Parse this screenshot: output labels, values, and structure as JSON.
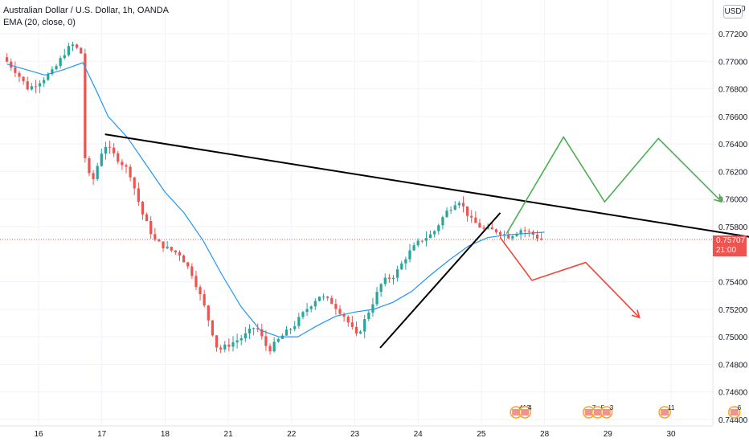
{
  "legend": {
    "title": "Australian Dollar / U.S. Dollar, 1h, OANDA",
    "indicator": "EMA (20, close, 0)"
  },
  "currency": "USD",
  "top_right_glyph": "0",
  "last_price": {
    "value": "0.75707",
    "countdown": "21:00",
    "color": "#ef5350"
  },
  "colors": {
    "up": "#26a69a",
    "down": "#ef5350",
    "ema": "#2196f3",
    "trendline": "#000000",
    "bull_path": "#4caf50",
    "bear_path": "#f44336"
  },
  "chart_data": {
    "type": "candlestick",
    "title": "Australian Dollar / U.S. Dollar, 1h, OANDA",
    "x_ticks": [
      "16",
      "17",
      "18",
      "21",
      "22",
      "23",
      "24",
      "25",
      "28",
      "29",
      "30"
    ],
    "y_ticks": [
      "0.77200",
      "0.77000",
      "0.76800",
      "0.76600",
      "0.76400",
      "0.76200",
      "0.76000",
      "0.75800",
      "0.75400",
      "0.75200",
      "0.75000",
      "0.74800",
      "0.74600",
      "0.74400"
    ],
    "ylim": [
      0.744,
      0.773
    ],
    "price_series": [
      [
        15.5,
        0.7703
      ],
      [
        15.7,
        0.7693
      ],
      [
        15.9,
        0.768
      ],
      [
        16.1,
        0.7686
      ],
      [
        16.3,
        0.7693
      ],
      [
        16.5,
        0.7708
      ],
      [
        16.6,
        0.7712
      ],
      [
        16.7,
        0.7708
      ],
      [
        16.75,
        0.7705
      ],
      [
        16.8,
        0.763
      ],
      [
        16.9,
        0.761
      ],
      [
        17.1,
        0.764
      ],
      [
        17.3,
        0.763
      ],
      [
        17.5,
        0.762
      ],
      [
        17.7,
        0.759
      ],
      [
        17.9,
        0.757
      ],
      [
        18.1,
        0.7564
      ],
      [
        18.3,
        0.756
      ],
      [
        18.5,
        0.7545
      ],
      [
        18.7,
        0.752
      ],
      [
        18.9,
        0.749
      ],
      [
        19.1,
        0.7495
      ],
      [
        19.3,
        0.75
      ],
      [
        19.5,
        0.7508
      ],
      [
        19.7,
        0.749
      ],
      [
        19.9,
        0.75
      ],
      [
        20.1,
        0.7508
      ],
      [
        20.3,
        0.752
      ],
      [
        20.5,
        0.753
      ],
      [
        20.7,
        0.7525
      ],
      [
        20.9,
        0.7515
      ],
      [
        21.1,
        0.75
      ],
      [
        21.3,
        0.752
      ],
      [
        21.5,
        0.754
      ],
      [
        21.7,
        0.7545
      ],
      [
        21.9,
        0.756
      ],
      [
        22.1,
        0.757
      ],
      [
        22.3,
        0.7575
      ],
      [
        22.5,
        0.759
      ],
      [
        22.7,
        0.76
      ],
      [
        22.9,
        0.7585
      ],
      [
        23.1,
        0.7578
      ],
      [
        23.3,
        0.7577
      ],
      [
        23.5,
        0.7573
      ],
      [
        23.7,
        0.7578
      ],
      [
        23.9,
        0.7574
      ],
      [
        24.0,
        0.75707
      ]
    ],
    "ema_series": [
      [
        15.5,
        0.7698
      ],
      [
        15.8,
        0.7694
      ],
      [
        16.1,
        0.769
      ],
      [
        16.4,
        0.7694
      ],
      [
        16.7,
        0.7699
      ],
      [
        16.9,
        0.768
      ],
      [
        17.1,
        0.766
      ],
      [
        17.4,
        0.7645
      ],
      [
        17.7,
        0.7625
      ],
      [
        18.0,
        0.7605
      ],
      [
        18.3,
        0.759
      ],
      [
        18.6,
        0.757
      ],
      [
        18.9,
        0.7545
      ],
      [
        19.2,
        0.7522
      ],
      [
        19.5,
        0.7505
      ],
      [
        19.8,
        0.75
      ],
      [
        20.1,
        0.75
      ],
      [
        20.4,
        0.7508
      ],
      [
        20.7,
        0.7515
      ],
      [
        21.0,
        0.7518
      ],
      [
        21.3,
        0.752
      ],
      [
        21.6,
        0.7525
      ],
      [
        21.9,
        0.7533
      ],
      [
        22.2,
        0.7545
      ],
      [
        22.5,
        0.7556
      ],
      [
        22.8,
        0.7566
      ],
      [
        23.1,
        0.7572
      ],
      [
        23.4,
        0.7574
      ],
      [
        23.7,
        0.7575
      ],
      [
        24.0,
        0.7576
      ]
    ],
    "trendlines": [
      {
        "name": "descending-resistance",
        "from": [
          17.05,
          0.7647
        ],
        "to": [
          30.6,
          0.7548
        ]
      },
      {
        "name": "ascending-support",
        "from": [
          21.4,
          0.7492
        ],
        "to": [
          23.3,
          0.759
        ]
      }
    ],
    "projections": [
      {
        "name": "bullish-path",
        "points": [
          [
            23.4,
            0.7575
          ],
          [
            24.3,
            0.7645
          ],
          [
            24.95,
            0.7598
          ],
          [
            25.8,
            0.7644
          ],
          [
            26.8,
            0.7598
          ]
        ]
      },
      {
        "name": "bearish-path",
        "points": [
          [
            23.3,
            0.7572
          ],
          [
            23.8,
            0.7541
          ],
          [
            24.65,
            0.7554
          ],
          [
            25.5,
            0.7514
          ]
        ]
      }
    ],
    "last_price_line": 0.75707,
    "event_markers": [
      {
        "x": 23.55,
        "labels": [
          "412",
          "4"
        ]
      },
      {
        "x": 24.7,
        "labels": [
          "7",
          "5",
          "3"
        ]
      },
      {
        "x": 25.9,
        "labels": [
          "11"
        ]
      },
      {
        "x": 27.0,
        "labels": [
          "6"
        ]
      },
      {
        "x": 27.4,
        "labels": [
          "8",
          "3"
        ]
      },
      {
        "x": 28.0,
        "labels": [
          "5"
        ]
      }
    ]
  }
}
